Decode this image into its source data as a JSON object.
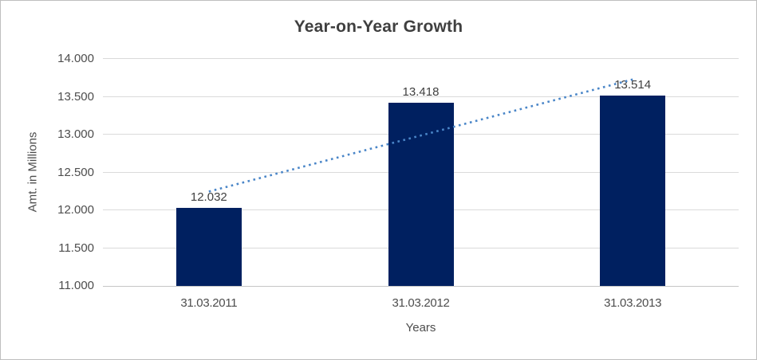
{
  "chart_data": {
    "type": "bar",
    "title": "Year-on-Year Growth",
    "xlabel": "Years",
    "ylabel": "Amt. in Millions",
    "categories": [
      "31.03.2011",
      "31.03.2012",
      "31.03.2013"
    ],
    "values": [
      12032,
      13418,
      13514
    ],
    "value_labels": [
      "12.032",
      "13.418",
      "13.514"
    ],
    "ylim": [
      11000,
      14000
    ],
    "y_ticks": [
      14000,
      13500,
      13000,
      12500,
      12000,
      11500,
      11000
    ],
    "y_tick_labels": [
      "14.000",
      "13.500",
      "13.000",
      "12.500",
      "12.000",
      "11.500",
      "11.000"
    ],
    "grid": true,
    "legend": "none",
    "trendline": {
      "type": "linear",
      "style": "dotted",
      "start_value": 12247,
      "end_value": 13729
    },
    "colors": {
      "bar": "#002060",
      "trendline": "#4a86c8",
      "gridline": "#dadada",
      "axis_line": "#c6c6c6",
      "title_text": "#3f3f3f",
      "label_text": "#404040",
      "tick_text": "#4d4d4d",
      "border": "#bfbfbf",
      "background": "#ffffff"
    }
  }
}
